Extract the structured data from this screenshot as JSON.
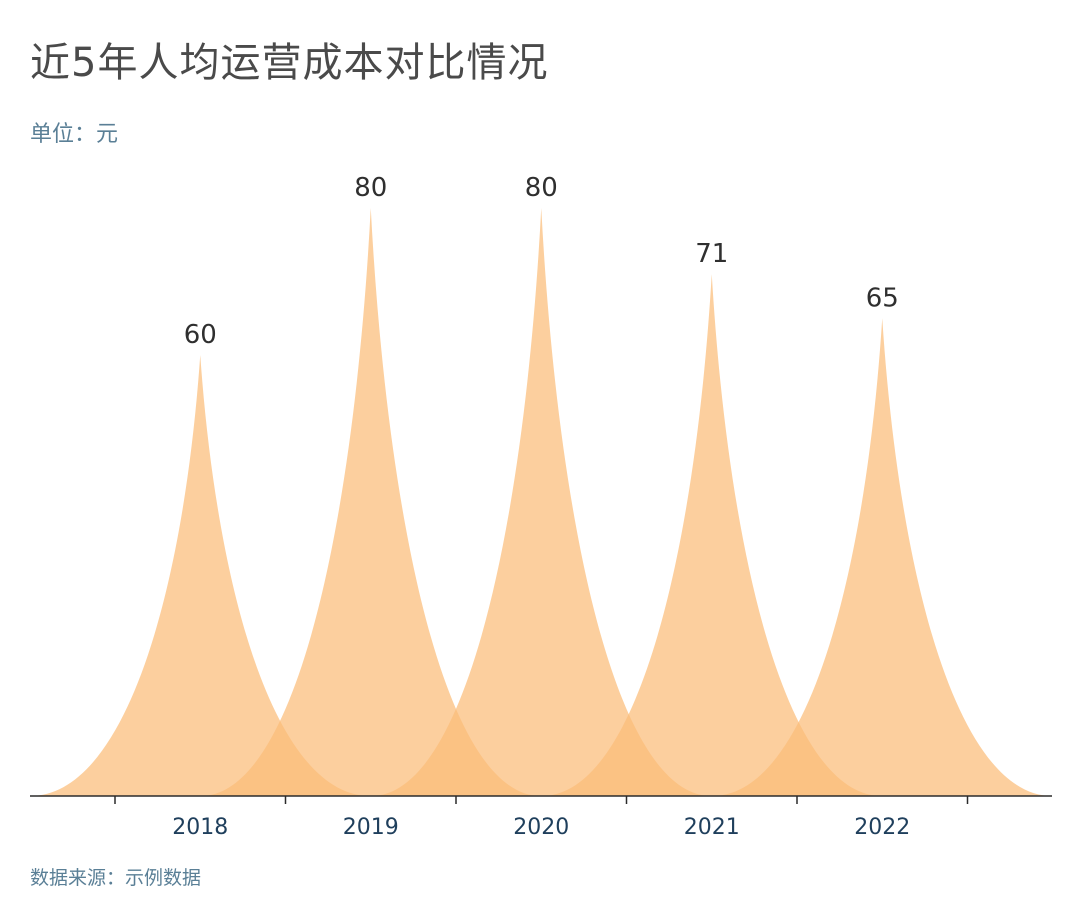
{
  "title": "近5年人均运营成本对比情况",
  "unit_label": "单位：元",
  "source_label": "数据来源：示例数据",
  "colors": {
    "peak_fill": "#fbbd79",
    "axis": "#2b2b2b",
    "value_text": "#2f2f2f",
    "tick_text": "#1f3f5c"
  },
  "chart_data": {
    "type": "bar",
    "style": "pictorial-peak",
    "categories": [
      "2018",
      "2019",
      "2020",
      "2021",
      "2022"
    ],
    "values": [
      60,
      80,
      80,
      71,
      65
    ],
    "ylim": [
      0,
      80
    ],
    "grid": false,
    "legend": "none",
    "show_value_labels": true
  }
}
